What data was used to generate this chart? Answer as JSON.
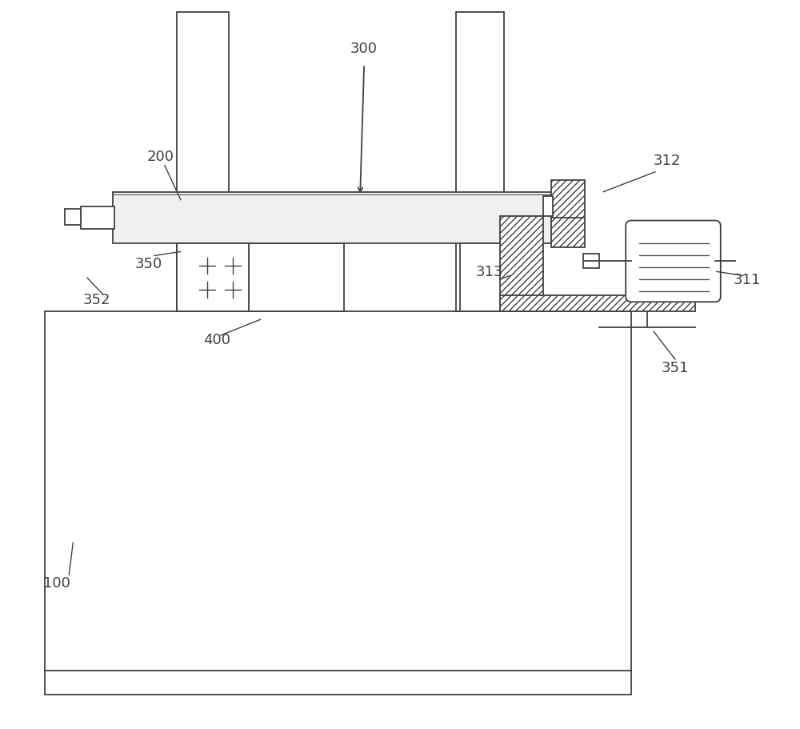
{
  "line_color": "#404040",
  "hatch_color": "#404040",
  "label_color": "#404040",
  "font_size": 13,
  "lw": 1.3
}
